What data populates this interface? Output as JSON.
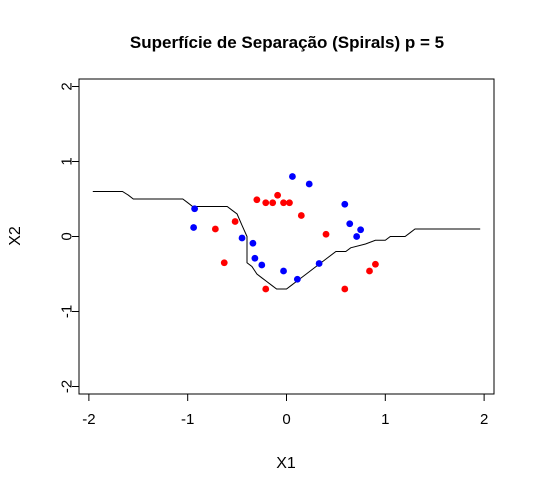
{
  "chart_data": {
    "type": "scatter",
    "title": "Superfície de Separação (Spirals) p = 5",
    "xlabel": "X1",
    "ylabel": "X2",
    "xlim": [
      -2.1,
      2.1
    ],
    "ylim": [
      -2.1,
      2.1
    ],
    "x_ticks": [
      -2,
      -1,
      0,
      1,
      2
    ],
    "y_ticks": [
      -2,
      -1,
      0,
      1,
      2
    ],
    "x_tick_labels": [
      "-2",
      "-1",
      "0",
      "1",
      "2"
    ],
    "y_tick_labels": [
      "-2",
      "-1",
      "0",
      "1",
      "2"
    ],
    "grid": false,
    "series": [
      {
        "color": "#0000ff",
        "points": [
          [
            -0.93,
            0.37
          ],
          [
            -0.94,
            0.12
          ],
          [
            -0.45,
            -0.02
          ],
          [
            -0.34,
            -0.09
          ],
          [
            -0.32,
            -0.29
          ],
          [
            -0.25,
            -0.38
          ],
          [
            -0.03,
            -0.46
          ],
          [
            0.11,
            -0.57
          ],
          [
            0.06,
            0.8
          ],
          [
            0.23,
            0.7
          ],
          [
            0.33,
            -0.36
          ],
          [
            0.59,
            0.43
          ],
          [
            0.64,
            0.17
          ],
          [
            0.71,
            0.0
          ],
          [
            0.75,
            0.09
          ]
        ]
      },
      {
        "color": "#ff0000",
        "points": [
          [
            -0.72,
            0.1
          ],
          [
            -0.63,
            -0.35
          ],
          [
            -0.52,
            0.2
          ],
          [
            -0.3,
            0.49
          ],
          [
            -0.21,
            0.45
          ],
          [
            -0.14,
            0.45
          ],
          [
            -0.09,
            0.55
          ],
          [
            -0.03,
            0.45
          ],
          [
            0.03,
            0.45
          ],
          [
            0.15,
            0.28
          ],
          [
            0.4,
            0.03
          ],
          [
            -0.21,
            -0.7
          ],
          [
            0.59,
            -0.7
          ],
          [
            0.84,
            -0.46
          ],
          [
            0.9,
            -0.37
          ]
        ]
      }
    ],
    "boundary": {
      "color": "#000000",
      "points": [
        [
          -1.96,
          0.6
        ],
        [
          -1.66,
          0.6
        ],
        [
          -1.6,
          0.55
        ],
        [
          -1.55,
          0.5
        ],
        [
          -1.05,
          0.5
        ],
        [
          -1.0,
          0.45
        ],
        [
          -0.95,
          0.4
        ],
        [
          -0.6,
          0.4
        ],
        [
          -0.55,
          0.35
        ],
        [
          -0.5,
          0.3
        ],
        [
          -0.45,
          0.15
        ],
        [
          -0.4,
          0.0
        ],
        [
          -0.4,
          -0.35
        ],
        [
          -0.35,
          -0.4
        ],
        [
          -0.3,
          -0.5
        ],
        [
          -0.25,
          -0.55
        ],
        [
          -0.2,
          -0.6
        ],
        [
          -0.15,
          -0.65
        ],
        [
          -0.1,
          -0.7
        ],
        [
          0.0,
          -0.7
        ],
        [
          0.05,
          -0.65
        ],
        [
          0.1,
          -0.6
        ],
        [
          0.2,
          -0.5
        ],
        [
          0.3,
          -0.4
        ],
        [
          0.4,
          -0.3
        ],
        [
          0.5,
          -0.2
        ],
        [
          0.6,
          -0.2
        ],
        [
          0.65,
          -0.15
        ],
        [
          0.8,
          -0.1
        ],
        [
          0.9,
          -0.05
        ],
        [
          1.0,
          -0.05
        ],
        [
          1.05,
          0.0
        ],
        [
          1.2,
          0.0
        ],
        [
          1.25,
          0.05
        ],
        [
          1.3,
          0.1
        ],
        [
          1.96,
          0.1
        ]
      ]
    }
  }
}
